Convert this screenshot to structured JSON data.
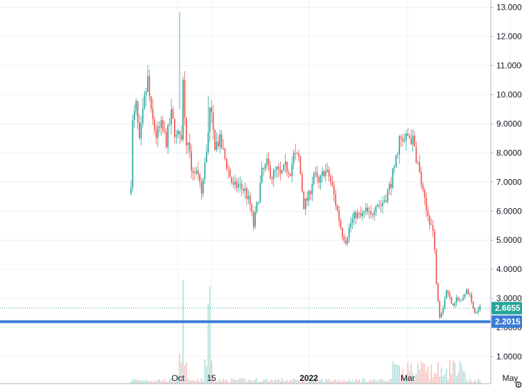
{
  "chart_data": {
    "type": "candlestick",
    "price_axis": {
      "ticks": [
        "1.0000",
        "2.0000",
        "3.0000",
        "4.0000",
        "5.0000",
        "6.0000",
        "7.0000",
        "8.0000",
        "9.0000",
        "10.0000",
        "11.0000",
        "12.0000",
        "13.0000"
      ],
      "range": [
        0.55,
        13.2
      ]
    },
    "time_axis": {
      "ticks": [
        {
          "label": "Oct",
          "idx": 28,
          "bold": false
        },
        {
          "label": "15",
          "idx": 48,
          "bold": false
        },
        {
          "label": "2022",
          "idx": 106,
          "bold": true
        },
        {
          "label": "Mar",
          "idx": 165,
          "bold": false
        },
        {
          "label": "May",
          "idx": 226,
          "bold": false
        }
      ]
    },
    "anchors": [
      [
        0,
        7.0
      ],
      [
        1,
        9.0
      ],
      [
        3,
        9.6
      ],
      [
        5,
        8.3
      ],
      [
        8,
        9.8
      ],
      [
        10,
        10.5
      ],
      [
        12,
        9.3
      ],
      [
        15,
        8.6
      ],
      [
        18,
        8.9
      ],
      [
        21,
        8.4
      ],
      [
        24,
        9.3
      ],
      [
        27,
        8.5
      ],
      [
        30,
        8.7
      ],
      [
        31,
        10.4
      ],
      [
        33,
        8.5
      ],
      [
        36,
        7.5
      ],
      [
        39,
        7.3
      ],
      [
        42,
        6.6
      ],
      [
        45,
        8.1
      ],
      [
        47,
        9.6
      ],
      [
        50,
        8.3
      ],
      [
        53,
        8.4
      ],
      [
        57,
        7.6
      ],
      [
        61,
        6.8
      ],
      [
        64,
        6.9
      ],
      [
        68,
        6.7
      ],
      [
        71,
        6.2
      ],
      [
        73,
        5.5
      ],
      [
        76,
        6.5
      ],
      [
        78,
        7.3
      ],
      [
        81,
        7.6
      ],
      [
        84,
        7.2
      ],
      [
        87,
        7.4
      ],
      [
        89,
        7.2
      ],
      [
        92,
        7.5
      ],
      [
        95,
        7.4
      ],
      [
        97,
        7.9
      ],
      [
        100,
        7.8
      ],
      [
        103,
        6.2
      ],
      [
        106,
        6.5
      ],
      [
        109,
        7.3
      ],
      [
        112,
        6.9
      ],
      [
        115,
        7.4
      ],
      [
        118,
        7.2
      ],
      [
        120,
        6.8
      ],
      [
        123,
        6.0
      ],
      [
        126,
        5.2
      ],
      [
        128,
        5.0
      ],
      [
        131,
        5.6
      ],
      [
        134,
        5.9
      ],
      [
        137,
        5.8
      ],
      [
        140,
        6.0
      ],
      [
        143,
        5.8
      ],
      [
        146,
        6.3
      ],
      [
        149,
        6.2
      ],
      [
        152,
        6.5
      ],
      [
        155,
        7.0
      ],
      [
        158,
        7.8
      ],
      [
        160,
        8.5
      ],
      [
        162,
        8.3
      ],
      [
        165,
        8.6
      ],
      [
        168,
        8.4
      ],
      [
        171,
        7.6
      ],
      [
        174,
        6.6
      ],
      [
        176,
        6.0
      ],
      [
        178,
        5.7
      ],
      [
        180,
        5.3
      ],
      [
        181,
        4.6
      ],
      [
        182,
        3.6
      ],
      [
        184,
        2.4
      ],
      [
        186,
        2.7
      ],
      [
        188,
        3.3
      ],
      [
        190,
        3.0
      ],
      [
        192,
        2.8
      ],
      [
        194,
        3.0
      ],
      [
        196,
        2.9
      ],
      [
        198,
        3.0
      ],
      [
        200,
        3.3
      ],
      [
        202,
        3.1
      ],
      [
        204,
        2.6
      ],
      [
        206,
        2.5
      ],
      [
        208,
        2.67
      ]
    ],
    "last_price": "2.6655",
    "level_price": "2.2015",
    "colors": {
      "up": "#26a69a",
      "down": "#ef5350",
      "level_line": "#3a7bd5",
      "last_label": "#26a69a",
      "level_label": "#3a7bd5"
    }
  }
}
